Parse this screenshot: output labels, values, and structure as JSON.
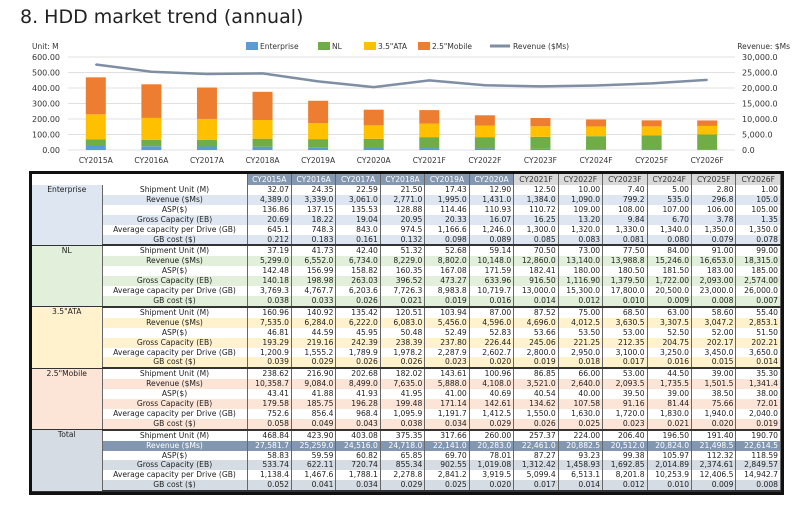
{
  "title": "8. HDD market trend (annual)",
  "chart_data": {
    "type": "bar",
    "title": "8. HDD market trend (annual)",
    "left_axis_label": "Unit: M",
    "right_axis_label": "Revenue: $Ms",
    "categories": [
      "CY2015A",
      "CY2016A",
      "CY2017A",
      "CY2018A",
      "CY2019A",
      "CY2020A",
      "CY2021F",
      "CY2022F",
      "CY2023F",
      "CY2024F",
      "CY2025F",
      "CY2026F"
    ],
    "ylim": [
      0,
      600
    ],
    "y2lim": [
      0,
      30000
    ],
    "yticks": [
      "0.00",
      "100.00",
      "200.00",
      "300.00",
      "400.00",
      "500.00",
      "600.00"
    ],
    "y2ticks": [
      "0.0",
      "5,000.0",
      "10,000.0",
      "15,000.0",
      "20,000.0",
      "25,000.0",
      "30,000.0"
    ],
    "legend_placement": "top-center",
    "series": [
      {
        "name": "Enterprise",
        "kind": "bar",
        "color": "#5b9bd5",
        "values": [
          32.07,
          24.35,
          22.59,
          21.5,
          17.43,
          12.9,
          12.5,
          10.0,
          7.4,
          5.0,
          2.8,
          1.0
        ]
      },
      {
        "name": "NL",
        "kind": "bar",
        "color": "#70ad47",
        "values": [
          37.19,
          41.73,
          42.4,
          51.32,
          52.68,
          59.14,
          70.5,
          73.0,
          77.5,
          84.0,
          91.0,
          99.0
        ]
      },
      {
        "name": "3.5\"ATA",
        "kind": "bar",
        "color": "#ffc000",
        "values": [
          160.96,
          140.92,
          135.42,
          120.51,
          103.94,
          87.0,
          87.52,
          75.0,
          68.5,
          63.0,
          58.6,
          55.4
        ]
      },
      {
        "name": "2.5\"Mobile",
        "kind": "bar",
        "color": "#ed7d31",
        "values": [
          238.62,
          216.9,
          202.68,
          182.02,
          143.61,
          100.96,
          86.85,
          66.0,
          53.0,
          44.5,
          39.0,
          35.3
        ]
      },
      {
        "name": "Revenue ($Ms)",
        "kind": "line",
        "axis": "right",
        "color": "#7f8ea3",
        "values": [
          27581.7,
          25259.0,
          24516.0,
          24718.0,
          22141.0,
          20283.0,
          22461.0,
          20882.5,
          20512.0,
          20824.0,
          21498.5,
          22614.5
        ]
      }
    ]
  },
  "table": {
    "columns": [
      "CY2015A",
      "CY2016A",
      "CY2017A",
      "CY2018A",
      "CY2019A",
      "CY2020A",
      "CY2021F",
      "CY2022F",
      "CY2023F",
      "CY2024F",
      "CY2025F",
      "CY2026F"
    ],
    "sections": [
      {
        "name": "Enterprise",
        "color": "#dde6f1",
        "rows": [
          {
            "label": "Shipment Unit (M)",
            "values": [
              "32.07",
              "24.35",
              "22.59",
              "21.50",
              "17.43",
              "12.90",
              "12.50",
              "10.00",
              "7.40",
              "5.00",
              "2.80",
              "1.00"
            ]
          },
          {
            "label": "Revenue ($Ms)",
            "values": [
              "4,389.0",
              "3,339.0",
              "3,061.0",
              "2,771.0",
              "1,995.0",
              "1,431.0",
              "1,384.0",
              "1,090.0",
              "799.2",
              "535.0",
              "296.8",
              "105.0"
            ]
          },
          {
            "label": "ASP($)",
            "values": [
              "136.86",
              "137.15",
              "135.53",
              "128.88",
              "114.46",
              "110.93",
              "110.72",
              "109.00",
              "108.00",
              "107.00",
              "106.00",
              "105.00"
            ]
          },
          {
            "label": "Gross Capacity (EB)",
            "values": [
              "20.69",
              "18.22",
              "19.04",
              "20.95",
              "20.33",
              "16.07",
              "16.25",
              "13.20",
              "9.84",
              "6.70",
              "3.78",
              "1.35"
            ]
          },
          {
            "label": "Average capacity per Drive (GB)",
            "values": [
              "645.1",
              "748.3",
              "843.0",
              "974.5",
              "1,166.6",
              "1,246.0",
              "1,300.0",
              "1,320.0",
              "1,330.0",
              "1,340.0",
              "1,350.0",
              "1,350.0"
            ]
          },
          {
            "label": "GB cost ($)",
            "values": [
              "0.212",
              "0.183",
              "0.161",
              "0.132",
              "0.098",
              "0.089",
              "0.085",
              "0.083",
              "0.081",
              "0.080",
              "0.079",
              "0.078"
            ]
          }
        ]
      },
      {
        "name": "NL",
        "color": "#e2efda",
        "rows": [
          {
            "label": "Shipment Unit (M)",
            "values": [
              "37.19",
              "41.73",
              "42.40",
              "51.32",
              "52.68",
              "59.14",
              "70.50",
              "73.00",
              "77.50",
              "84.00",
              "91.00",
              "99.00"
            ]
          },
          {
            "label": "Revenue ($Ms)",
            "values": [
              "5,299.0",
              "6,552.0",
              "6,734.0",
              "8,229.0",
              "8,802.0",
              "10,148.0",
              "12,860.0",
              "13,140.0",
              "13,988.8",
              "15,246.0",
              "16,653.0",
              "18,315.0"
            ]
          },
          {
            "label": "ASP($)",
            "values": [
              "142.48",
              "156.99",
              "158.82",
              "160.35",
              "167.08",
              "171.59",
              "182.41",
              "180.00",
              "180.50",
              "181.50",
              "183.00",
              "185.00"
            ]
          },
          {
            "label": "Gross  Capacity (EB)",
            "values": [
              "140.18",
              "198.98",
              "263.03",
              "396.52",
              "473.27",
              "633.96",
              "916.50",
              "1,116.90",
              "1,379.50",
              "1,722.00",
              "2,093.00",
              "2,574.00"
            ]
          },
          {
            "label": "Average capacity per Drive (GB)",
            "values": [
              "3,769.3",
              "4,767.7",
              "6,203.6",
              "7,726.3",
              "8,983.8",
              "10,719.7",
              "13,000.0",
              "15,300.0",
              "17,800.0",
              "20,500.0",
              "23,000.0",
              "26,000.0"
            ]
          },
          {
            "label": "GB cost ($)",
            "values": [
              "0.038",
              "0.033",
              "0.026",
              "0.021",
              "0.019",
              "0.016",
              "0.014",
              "0.012",
              "0.010",
              "0.009",
              "0.008",
              "0.007"
            ]
          }
        ]
      },
      {
        "name": "3.5\"ATA",
        "color": "#fff2cc",
        "rows": [
          {
            "label": "Shipment Unit (M)",
            "values": [
              "160.96",
              "140.92",
              "135.42",
              "120.51",
              "103.94",
              "87.00",
              "87.52",
              "75.00",
              "68.50",
              "63.00",
              "58.60",
              "55.40"
            ]
          },
          {
            "label": "Revenue ($Ms)",
            "values": [
              "7,535.0",
              "6,284.0",
              "6,222.0",
              "6,083.0",
              "5,456.0",
              "4,596.0",
              "4,696.0",
              "4,012.5",
              "3,630.5",
              "3,307.5",
              "3,047.2",
              "2,853.1"
            ]
          },
          {
            "label": "ASP($)",
            "values": [
              "46.81",
              "44.59",
              "45.95",
              "50.48",
              "52.49",
              "52.83",
              "53.66",
              "53.50",
              "53.00",
              "52.50",
              "52.00",
              "51.50"
            ]
          },
          {
            "label": "Gross Capacity (EB)",
            "values": [
              "193.29",
              "219.16",
              "242.39",
              "238.39",
              "237.80",
              "226.44",
              "245.06",
              "221.25",
              "212.35",
              "204.75",
              "202.17",
              "202.21"
            ]
          },
          {
            "label": "Average capacity per Drive (GB)",
            "values": [
              "1,200.9",
              "1,555.2",
              "1,789.9",
              "1,978.2",
              "2,287.9",
              "2,602.7",
              "2,800.0",
              "2,950.0",
              "3,100.0",
              "3,250.0",
              "3,450.0",
              "3,650.0"
            ]
          },
          {
            "label": "GB cost ($)",
            "values": [
              "0.039",
              "0.029",
              "0.026",
              "0.026",
              "0.023",
              "0.020",
              "0.019",
              "0.018",
              "0.017",
              "0.016",
              "0.015",
              "0.014"
            ]
          }
        ]
      },
      {
        "name": "2.5\"Mobile",
        "color": "#fce4d6",
        "rows": [
          {
            "label": "Shipment Unit (M)",
            "values": [
              "238.62",
              "216.90",
              "202.68",
              "182.02",
              "143.61",
              "100.96",
              "86.85",
              "66.00",
              "53.00",
              "44.50",
              "39.00",
              "35.30"
            ]
          },
          {
            "label": "Revenue ($Ms)",
            "values": [
              "10,358.7",
              "9,084.0",
              "8,499.0",
              "7,635.0",
              "5,888.0",
              "4,108.0",
              "3,521.0",
              "2,640.0",
              "2,093.5",
              "1,735.5",
              "1,501.5",
              "1,341.4"
            ]
          },
          {
            "label": "ASP($)",
            "values": [
              "43.41",
              "41.88",
              "41.93",
              "41.95",
              "41.00",
              "40.69",
              "40.54",
              "40.00",
              "39.50",
              "39.00",
              "38.50",
              "38.00"
            ]
          },
          {
            "label": "Gross  Capacity (EB)",
            "values": [
              "179.58",
              "185.75",
              "196.28",
              "199.48",
              "171.14",
              "142.61",
              "134.62",
              "107.58",
              "91.16",
              "81.44",
              "75.66",
              "72.01"
            ]
          },
          {
            "label": "Average capacity per Drive (GB)",
            "values": [
              "752.6",
              "856.4",
              "968.4",
              "1,095.9",
              "1,191.7",
              "1,412.5",
              "1,550.0",
              "1,630.0",
              "1,720.0",
              "1,830.0",
              "1,940.0",
              "2,040.0"
            ]
          },
          {
            "label": "GB cost ($)",
            "values": [
              "0.058",
              "0.049",
              "0.043",
              "0.038",
              "0.034",
              "0.029",
              "0.026",
              "0.025",
              "0.023",
              "0.021",
              "0.020",
              "0.019"
            ]
          }
        ]
      },
      {
        "name": "Total",
        "color": "#d6dce4",
        "highlight_row": 1,
        "highlight_color": "#8497b0",
        "rows": [
          {
            "label": "Shipment Unit (M)",
            "values": [
              "468.84",
              "423.90",
              "403.08",
              "375.35",
              "317.66",
              "260.00",
              "257.37",
              "224.00",
              "206.40",
              "196.50",
              "191.40",
              "190.70"
            ]
          },
          {
            "label": "Revenue ($Ms)",
            "values": [
              "27,581.7",
              "25,259.0",
              "24,516.0",
              "24,718.0",
              "22,141.0",
              "20,283.0",
              "22,461.0",
              "20,882.5",
              "20,512.0",
              "20,824.0",
              "21,498.5",
              "22,614.5"
            ]
          },
          {
            "label": "ASP($)",
            "values": [
              "58.83",
              "59.59",
              "60.82",
              "65.85",
              "69.70",
              "78.01",
              "87.27",
              "93.23",
              "99.38",
              "105.97",
              "112.32",
              "118.59"
            ]
          },
          {
            "label": "Gross Capacity (EB)",
            "values": [
              "533.74",
              "622.11",
              "720.74",
              "855.34",
              "902.55",
              "1,019.08",
              "1,312.42",
              "1,458.93",
              "1,692.85",
              "2,014.89",
              "2,374.61",
              "2,849.57"
            ]
          },
          {
            "label": "Average capacity per Drive (GB)",
            "values": [
              "1,138.4",
              "1,467.6",
              "1,788.1",
              "2,278.8",
              "2,841.2",
              "3,919.5",
              "5,099.4",
              "6,513.1",
              "8,201.8",
              "10,253.9",
              "12,406.5",
              "14,942.7"
            ]
          },
          {
            "label": "GB cost ($)",
            "values": [
              "0.052",
              "0.041",
              "0.034",
              "0.029",
              "0.025",
              "0.020",
              "0.017",
              "0.014",
              "0.012",
              "0.010",
              "0.009",
              "0.008"
            ]
          }
        ]
      }
    ]
  }
}
